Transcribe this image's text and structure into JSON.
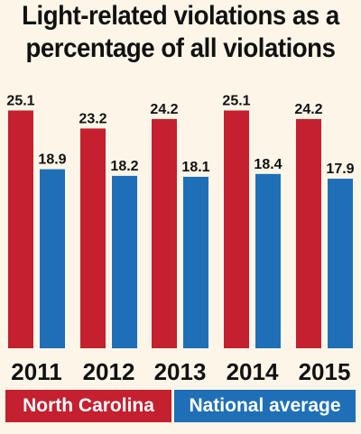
{
  "title_lines": [
    "Light-related violations as a",
    "percentage of all violations"
  ],
  "colors": {
    "north_carolina": "#c4202f",
    "national": "#1f6fb6",
    "background": "#fdf6e8",
    "text": "#111111"
  },
  "chart_data": {
    "type": "bar",
    "title": "Light-related violations as a percentage of all violations",
    "categories": [
      "2011",
      "2012",
      "2013",
      "2014",
      "2015"
    ],
    "series": [
      {
        "name": "North Carolina",
        "values": [
          25.1,
          23.2,
          24.2,
          25.1,
          24.2
        ],
        "labels": [
          "25.1",
          "23.2",
          "24.2",
          "25.1",
          "24.2"
        ]
      },
      {
        "name": "National average",
        "values": [
          18.9,
          18.2,
          18.1,
          18.4,
          17.9
        ],
        "labels": [
          "18.9",
          "18.2",
          "18.1",
          "18.4",
          "17.9"
        ]
      }
    ],
    "xlabel": "",
    "ylabel": "",
    "ylim": [
      0,
      26
    ],
    "grid": false,
    "legend": "bottom"
  }
}
